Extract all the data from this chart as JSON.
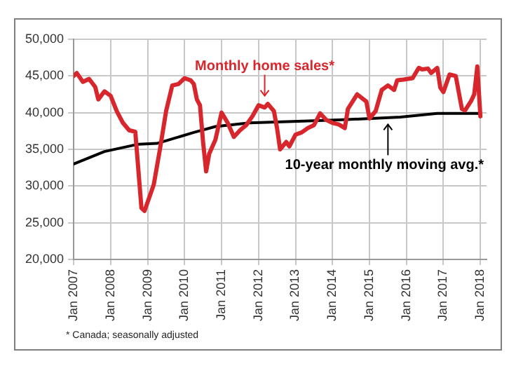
{
  "chart_data": {
    "type": "line",
    "xlim": [
      "2007-01",
      "2018-03"
    ],
    "xticks": [
      {
        "value": "2007-01",
        "label": "Jan 2007"
      },
      {
        "value": "2008-01",
        "label": "Jan 2008"
      },
      {
        "value": "2009-01",
        "label": "Jan 2009"
      },
      {
        "value": "2010-01",
        "label": "Jan 2010"
      },
      {
        "value": "2011-01",
        "label": "Jan 2011"
      },
      {
        "value": "2012-01",
        "label": "Jan 2012"
      },
      {
        "value": "2013-01",
        "label": "Jan 2013"
      },
      {
        "value": "2014-01",
        "label": "Jan 2014"
      },
      {
        "value": "2015-01",
        "label": "Jan 2015"
      },
      {
        "value": "2016-01",
        "label": "Jan 2016"
      },
      {
        "value": "2017-01",
        "label": "Jan 2017"
      },
      {
        "value": "2018-01",
        "label": "Jan 2018"
      }
    ],
    "ylim": [
      20000,
      50000
    ],
    "yticks": [
      {
        "value": 20000,
        "label": "20,000"
      },
      {
        "value": 25000,
        "label": "25,000"
      },
      {
        "value": 30000,
        "label": "30,000"
      },
      {
        "value": 35000,
        "label": "35,000"
      },
      {
        "value": 40000,
        "label": "40,000"
      },
      {
        "value": 45000,
        "label": "45,000"
      },
      {
        "value": 50000,
        "label": "50,000"
      }
    ],
    "grid": true,
    "marker": "none",
    "line_style": "solid",
    "series": [
      {
        "color": "#d7262c",
        "x": [
          "2007-01",
          "2007-02",
          "2007-04",
          "2007-06",
          "2007-08",
          "2007-09",
          "2007-11",
          "2008-01",
          "2008-03",
          "2008-05",
          "2008-07",
          "2008-09",
          "2008-11",
          "2008-12",
          "2009-03",
          "2009-05",
          "2009-07",
          "2009-09",
          "2009-11",
          "2010-01",
          "2010-03",
          "2010-04",
          "2010-05",
          "2010-06",
          "2010-07",
          "2010-08",
          "2010-09",
          "2010-11",
          "2011-01",
          "2011-03",
          "2011-05",
          "2011-07",
          "2011-09",
          "2011-11",
          "2012-01",
          "2012-03",
          "2012-04",
          "2012-06",
          "2012-07",
          "2012-08",
          "2012-10",
          "2012-11",
          "2013-01",
          "2013-03",
          "2013-05",
          "2013-07",
          "2013-09",
          "2013-11",
          "2014-01",
          "2014-03",
          "2014-05",
          "2014-06",
          "2014-09",
          "2014-12",
          "2015-01",
          "2015-03",
          "2015-05",
          "2015-07",
          "2015-09",
          "2015-10",
          "2015-12",
          "2016-03",
          "2016-05",
          "2016-06",
          "2016-08",
          "2016-09",
          "2016-11",
          "2016-12",
          "2017-01",
          "2017-03",
          "2017-05",
          "2017-07",
          "2017-08",
          "2017-10",
          "2017-11",
          "2017-12",
          "2018-01"
        ],
        "values": [
          45000,
          45400,
          44200,
          44600,
          43500,
          41800,
          42900,
          42300,
          40200,
          38600,
          37600,
          37400,
          27000,
          26600,
          30200,
          35000,
          40200,
          43700,
          43900,
          44700,
          44400,
          43900,
          41800,
          41000,
          36000,
          32000,
          34400,
          36300,
          40000,
          38600,
          36700,
          37600,
          38300,
          39500,
          41000,
          40700,
          41200,
          40200,
          37900,
          35000,
          36000,
          35400,
          37000,
          37300,
          37900,
          38300,
          39900,
          39000,
          38600,
          38400,
          37900,
          40500,
          42500,
          41500,
          39200,
          40200,
          43100,
          43700,
          43100,
          44400,
          44500,
          44700,
          46100,
          45900,
          46000,
          45400,
          46100,
          43400,
          42800,
          45200,
          45000,
          40500,
          40300,
          41600,
          42500,
          46300,
          39500
        ]
      },
      {
        "color": "#000000",
        "x": [
          "2007-01",
          "2007-11",
          "2008-10",
          "2009-04",
          "2009-08",
          "2010-04",
          "2010-11",
          "2011-10",
          "2012-12",
          "2014-03",
          "2015-11",
          "2016-11",
          "2018-01"
        ],
        "values": [
          33000,
          34700,
          35700,
          35800,
          36300,
          37300,
          38100,
          38600,
          38800,
          39000,
          39400,
          39900,
          39900
        ]
      }
    ],
    "annotations": [
      {
        "text": "Monthly home sales*",
        "x": "2012-03",
        "y": 42300
      },
      {
        "text": "10-year monthly moving avg.*",
        "x": "2015-07",
        "y": 38400
      },
      "* Canada; seasonally adjusted"
    ]
  }
}
